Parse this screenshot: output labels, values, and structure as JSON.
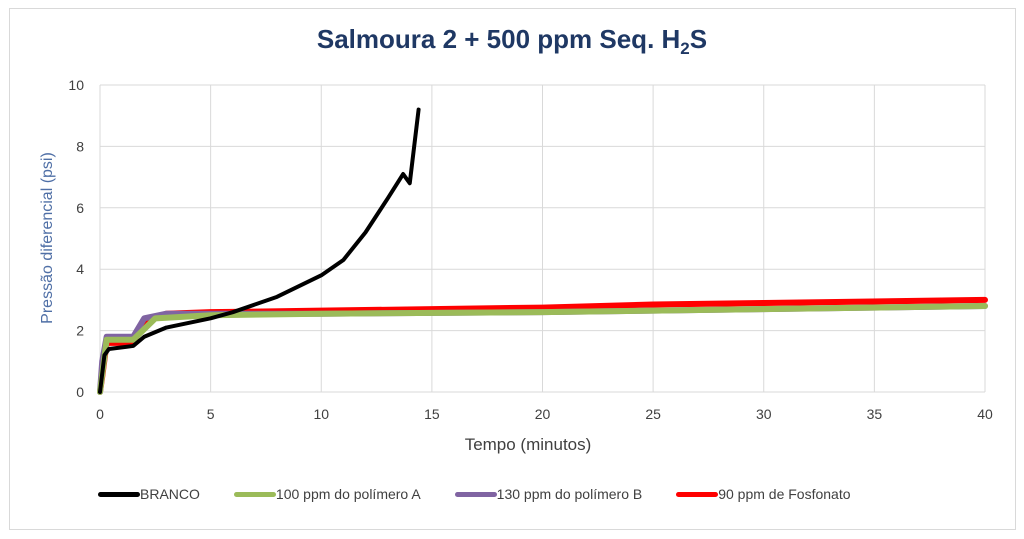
{
  "chart_data": {
    "type": "line",
    "title": {
      "main": "Salmoura 2 + 500 ppm Seq. H",
      "sub": "2",
      "tail": "S"
    },
    "xlabel": "Tempo (minutos)",
    "ylabel": "Pressão diferencial (psi)",
    "xlim": [
      0,
      40
    ],
    "ylim": [
      0,
      10
    ],
    "xticks": [
      0,
      5,
      10,
      15,
      20,
      25,
      30,
      35,
      40
    ],
    "yticks": [
      0,
      2,
      4,
      6,
      8,
      10
    ],
    "grid": true,
    "legend_position": "bottom",
    "series": [
      {
        "name": "BRANCO",
        "color": "#000000",
        "points": [
          [
            0,
            0
          ],
          [
            0.2,
            1.2
          ],
          [
            0.4,
            1.4
          ],
          [
            1.5,
            1.5
          ],
          [
            2,
            1.8
          ],
          [
            3,
            2.1
          ],
          [
            5,
            2.4
          ],
          [
            6,
            2.6
          ],
          [
            8,
            3.1
          ],
          [
            10,
            3.8
          ],
          [
            11,
            4.3
          ],
          [
            12,
            5.2
          ],
          [
            13,
            6.3
          ],
          [
            13.7,
            7.1
          ],
          [
            14,
            6.8
          ],
          [
            14.2,
            8
          ],
          [
            14.4,
            9.2
          ]
        ]
      },
      {
        "name": "100 ppm do polímero A",
        "color": "#9bbb59",
        "points": [
          [
            0,
            0
          ],
          [
            0.3,
            1.7
          ],
          [
            1.5,
            1.7
          ],
          [
            2.5,
            2.4
          ],
          [
            5,
            2.5
          ],
          [
            10,
            2.55
          ],
          [
            20,
            2.6
          ],
          [
            40,
            2.8
          ]
        ]
      },
      {
        "name": "130 ppm do polímero B",
        "color": "#8064a2",
        "points": [
          [
            0,
            0
          ],
          [
            0.1,
            1.0
          ],
          [
            0.3,
            1.8
          ],
          [
            1.5,
            1.8
          ],
          [
            2,
            2.4
          ],
          [
            3,
            2.55
          ],
          [
            10,
            2.55
          ],
          [
            20,
            2.6
          ],
          [
            30,
            2.7
          ],
          [
            40,
            2.8
          ]
        ]
      },
      {
        "name": "90 ppm de Fosfonato",
        "color": "#ff0000",
        "points": [
          [
            0,
            0
          ],
          [
            0.1,
            0.5
          ],
          [
            0.3,
            1.6
          ],
          [
            1.5,
            1.6
          ],
          [
            2,
            2.3
          ],
          [
            3,
            2.55
          ],
          [
            5,
            2.6
          ],
          [
            10,
            2.65
          ],
          [
            20,
            2.75
          ],
          [
            25,
            2.85
          ],
          [
            30,
            2.9
          ],
          [
            40,
            3.0
          ]
        ]
      }
    ]
  }
}
